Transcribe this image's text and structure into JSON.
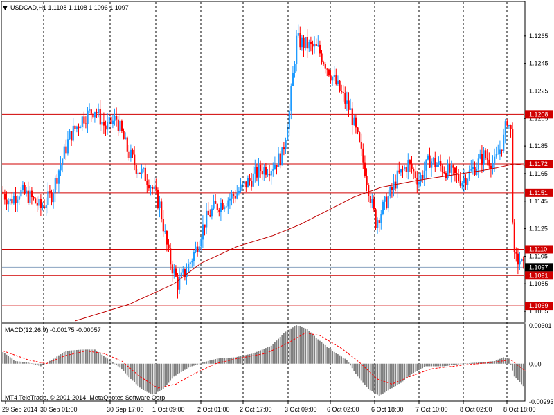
{
  "window": {
    "title": "USDCAD,H1  1.1108 1.1108 1.1096 1.1097",
    "menu_glyph": "▼",
    "copyright": "MT4 TeleTrade, © 2001-2014, MetaQuotes Software Corp."
  },
  "colors": {
    "background": "#ffffff",
    "bull": "#1e9bff",
    "bear": "#ff0000",
    "level": "#d00000",
    "ma": "#c00000",
    "grid": "#000000",
    "macd_hist": "#808080",
    "macd_signal": "#ff0000"
  },
  "chart_data": [
    {
      "type": "candlestick",
      "symbol": "USDCAD",
      "timeframe": "H1",
      "last": 1.1097,
      "ylim": [
        1.1058,
        1.1282
      ],
      "y_ticks": [
        "1.1265",
        "1.1245",
        "1.1225",
        "1.1205",
        "1.1185",
        "1.1165",
        "1.1145",
        "1.1125",
        "1.1105",
        "1.1085",
        "1.1065"
      ],
      "x_ticks": [
        "29 Sep 2014",
        "30 Sep 01:00",
        "30 Sep 17:00",
        "1 Oct 09:00",
        "2 Oct 01:00",
        "2 Oct 17:00",
        "3 Oct 09:00",
        "6 Oct 02:00",
        "6 Oct 18:00",
        "7 Oct 10:00",
        "8 Oct 02:00",
        "8 Oct 18:00"
      ],
      "levels": [
        "1.1208",
        "1.1172",
        "1.1151",
        "1.1110",
        "1.1091",
        "1.1069"
      ],
      "current_price_label": "1.1097",
      "anchors": [
        [
          0,
          1.1152
        ],
        [
          5,
          1.1145
        ],
        [
          10,
          1.1152
        ],
        [
          16,
          1.1148
        ],
        [
          22,
          1.114
        ],
        [
          28,
          1.115
        ],
        [
          32,
          1.1168
        ],
        [
          38,
          1.1192
        ],
        [
          45,
          1.1205
        ],
        [
          52,
          1.1212
        ],
        [
          58,
          1.1198
        ],
        [
          64,
          1.1205
        ],
        [
          70,
          1.1182
        ],
        [
          75,
          1.117
        ],
        [
          82,
          1.116
        ],
        [
          88,
          1.1142
        ],
        [
          93,
          1.1105
        ],
        [
          98,
          1.1085
        ],
        [
          103,
          1.1095
        ],
        [
          108,
          1.111
        ],
        [
          113,
          1.113
        ],
        [
          118,
          1.114
        ],
        [
          124,
          1.1145
        ],
        [
          130,
          1.115
        ],
        [
          138,
          1.116
        ],
        [
          144,
          1.1168
        ],
        [
          150,
          1.117
        ],
        [
          156,
          1.1178
        ],
        [
          160,
          1.121
        ],
        [
          164,
          1.1262
        ],
        [
          170,
          1.1258
        ],
        [
          176,
          1.1255
        ],
        [
          182,
          1.124
        ],
        [
          188,
          1.1225
        ],
        [
          194,
          1.121
        ],
        [
          198,
          1.119
        ],
        [
          202,
          1.1168
        ],
        [
          205,
          1.1148
        ],
        [
          208,
          1.113
        ],
        [
          212,
          1.114
        ],
        [
          216,
          1.115
        ],
        [
          220,
          1.1162
        ],
        [
          226,
          1.1172
        ],
        [
          232,
          1.116
        ],
        [
          238,
          1.1175
        ],
        [
          244,
          1.117
        ],
        [
          250,
          1.1165
        ],
        [
          256,
          1.116
        ],
        [
          262,
          1.1168
        ],
        [
          268,
          1.1178
        ],
        [
          274,
          1.1172
        ],
        [
          279,
          1.119
        ],
        [
          281,
          1.1205
        ],
        [
          283,
          1.1195
        ],
        [
          284,
          1.1135
        ],
        [
          285,
          1.1102
        ],
        [
          288,
          1.1102
        ],
        [
          290,
          1.1096
        ]
      ],
      "ma_line": [
        [
          40,
          1.1058
        ],
        [
          70,
          1.107
        ],
        [
          95,
          1.1085
        ],
        [
          110,
          1.11
        ],
        [
          130,
          1.1112
        ],
        [
          150,
          1.112
        ],
        [
          165,
          1.1128
        ],
        [
          180,
          1.1138
        ],
        [
          195,
          1.1148
        ],
        [
          210,
          1.1155
        ],
        [
          230,
          1.116
        ],
        [
          250,
          1.1164
        ],
        [
          270,
          1.1168
        ],
        [
          284,
          1.1172
        ],
        [
          290,
          1.1171
        ]
      ]
    },
    {
      "type": "bar",
      "name": "MACD(12,26,9) -0.00175 -0.00057",
      "ylim": [
        -0.00293,
        0.00301
      ],
      "y_ticks": [
        "0.00301",
        "0.00",
        "-0.00293"
      ],
      "hist_anchors": [
        [
          0,
          0.001
        ],
        [
          8,
          0.0002
        ],
        [
          15,
          0.0001
        ],
        [
          22,
          -0.0002
        ],
        [
          28,
          0.0003
        ],
        [
          36,
          0.001
        ],
        [
          45,
          0.0011
        ],
        [
          52,
          0.0011
        ],
        [
          60,
          0.0003
        ],
        [
          66,
          -0.0003
        ],
        [
          72,
          -0.0012
        ],
        [
          78,
          -0.002
        ],
        [
          84,
          -0.0024
        ],
        [
          90,
          -0.002
        ],
        [
          96,
          -0.001
        ],
        [
          104,
          -0.0003
        ],
        [
          112,
          0.0001
        ],
        [
          120,
          0.0004
        ],
        [
          130,
          0.0005
        ],
        [
          140,
          0.0008
        ],
        [
          150,
          0.0014
        ],
        [
          158,
          0.0025
        ],
        [
          164,
          0.003
        ],
        [
          170,
          0.0027
        ],
        [
          176,
          0.0019
        ],
        [
          184,
          0.001
        ],
        [
          192,
          0.0003
        ],
        [
          198,
          -0.001
        ],
        [
          204,
          -0.002
        ],
        [
          210,
          -0.0025
        ],
        [
          216,
          -0.002
        ],
        [
          222,
          -0.0015
        ],
        [
          228,
          -0.0008
        ],
        [
          236,
          -0.0002
        ],
        [
          246,
          -0.0002
        ],
        [
          256,
          0.0
        ],
        [
          266,
          0.0001
        ],
        [
          274,
          0.0002
        ],
        [
          279,
          0.0005
        ],
        [
          282,
          0.0004
        ],
        [
          285,
          -0.001
        ],
        [
          290,
          -0.00175
        ]
      ],
      "signal_anchors": [
        [
          0,
          0.001
        ],
        [
          14,
          0.0003
        ],
        [
          24,
          0.0
        ],
        [
          34,
          0.0006
        ],
        [
          46,
          0.001
        ],
        [
          56,
          0.0008
        ],
        [
          66,
          0.0002
        ],
        [
          76,
          -0.001
        ],
        [
          86,
          -0.0019
        ],
        [
          96,
          -0.0016
        ],
        [
          106,
          -0.0008
        ],
        [
          118,
          0.0
        ],
        [
          130,
          0.0004
        ],
        [
          146,
          0.0008
        ],
        [
          158,
          0.0016
        ],
        [
          168,
          0.0024
        ],
        [
          176,
          0.0022
        ],
        [
          188,
          0.0012
        ],
        [
          198,
          0.0001
        ],
        [
          208,
          -0.0012
        ],
        [
          216,
          -0.0016
        ],
        [
          226,
          -0.001
        ],
        [
          238,
          -0.0004
        ],
        [
          256,
          -0.0001
        ],
        [
          272,
          0.0001
        ],
        [
          282,
          0.0003
        ],
        [
          290,
          -0.00057
        ]
      ]
    }
  ]
}
